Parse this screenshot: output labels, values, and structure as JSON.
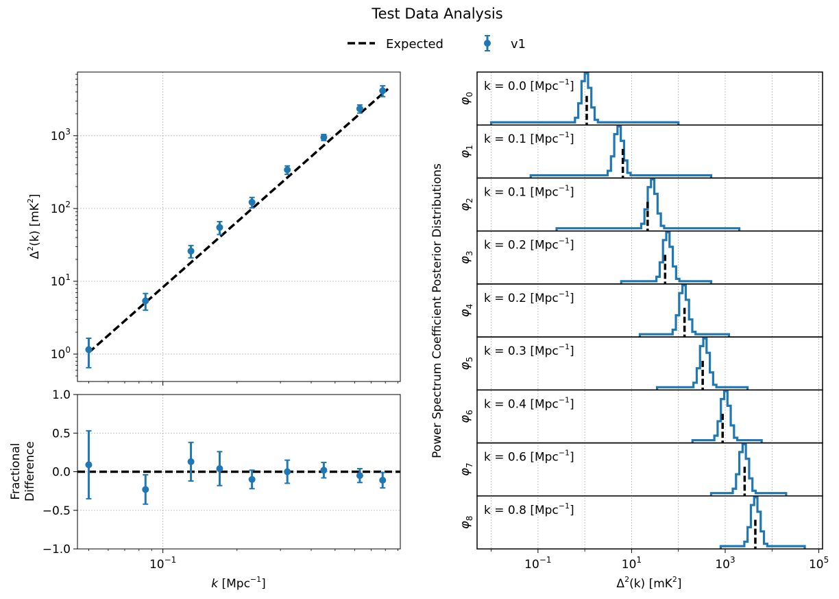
{
  "title": "Test Data Analysis",
  "legend": {
    "expected": "Expected",
    "series": "v1"
  },
  "colors": {
    "series": "#1f77b4",
    "expected": "#000000",
    "grid": "#b0b0b0"
  },
  "chart_data": [
    {
      "type": "scatter",
      "name": "power-spectrum",
      "xlabel_italic": "k",
      "xlabel_unit": "[Mpc",
      "xlabel_exp": "−1",
      "xlabel_close": "]",
      "ylabel_main": "Δ",
      "ylabel_exp": "2",
      "ylabel_rest": "(k) [mK",
      "ylabel_exp2": "2",
      "ylabel_close": "]",
      "xscale": "log",
      "yscale": "log",
      "xlim": [
        0.045,
        0.92
      ],
      "ylim": [
        0.42,
        7500
      ],
      "yticks": [
        {
          "value": 1,
          "mant": "10",
          "exp": "0"
        },
        {
          "value": 10,
          "mant": "10",
          "exp": "1"
        },
        {
          "value": 100,
          "mant": "10",
          "exp": "2"
        },
        {
          "value": 1000,
          "mant": "10",
          "exp": "3"
        }
      ],
      "grid": true,
      "expected": {
        "x": [
          0.05,
          0.82
        ],
        "y": [
          1.05,
          4400
        ]
      },
      "series": [
        {
          "name": "v1",
          "x": [
            0.05,
            0.085,
            0.13,
            0.17,
            0.23,
            0.32,
            0.45,
            0.63,
            0.78
          ],
          "y": [
            1.15,
            5.4,
            26,
            55,
            122,
            340,
            950,
            2350,
            4150
          ],
          "yerr_low": [
            0.5,
            1.4,
            5,
            11,
            20,
            45,
            90,
            300,
            700
          ],
          "yerr_high": [
            0.5,
            1.4,
            5,
            11,
            20,
            45,
            90,
            300,
            700
          ]
        }
      ]
    },
    {
      "type": "scatter",
      "name": "fractional-difference",
      "xlabel_italic": "k",
      "xlabel_unit": "[Mpc",
      "xlabel_exp": "−1",
      "xlabel_close": "]",
      "ylabel": [
        "Fractional",
        "Difference"
      ],
      "xscale": "log",
      "xlim": [
        0.045,
        0.92
      ],
      "ylim": [
        -1.0,
        1.0
      ],
      "yticks": [
        "−1.0",
        "−0.5",
        "0.0",
        "0.5",
        "1.0"
      ],
      "xticks": [
        {
          "value": 0.1,
          "mant": "10",
          "exp": "−1"
        }
      ],
      "grid": true,
      "series": [
        {
          "name": "v1",
          "x": [
            0.05,
            0.085,
            0.13,
            0.17,
            0.23,
            0.32,
            0.45,
            0.63,
            0.78
          ],
          "y": [
            0.09,
            -0.23,
            0.13,
            0.04,
            -0.1,
            0.0,
            0.02,
            -0.05,
            -0.11
          ],
          "yerr": [
            0.44,
            0.19,
            0.25,
            0.22,
            0.12,
            0.15,
            0.1,
            0.09,
            0.1
          ]
        }
      ]
    },
    {
      "type": "histogram",
      "name": "posterior-distributions",
      "ylabel": "Power Spectrum Coefficient Posterior Distributions",
      "xscale": "log",
      "xlim": [
        0.005,
        120000
      ],
      "xlabel_main": "Δ",
      "xlabel_exp": "2",
      "xlabel_rest": "(k) [mK",
      "xlabel_exp2": "2",
      "xlabel_close": "]",
      "xticks": [
        {
          "value": 0.1,
          "mant": "10",
          "exp": "−1"
        },
        {
          "value": 10,
          "mant": "10",
          "exp": "1"
        },
        {
          "value": 1000,
          "mant": "10",
          "exp": "3"
        },
        {
          "value": 100000,
          "mant": "10",
          "exp": "5"
        }
      ],
      "panels": [
        {
          "label": "φ",
          "sub": "0",
          "k_text": "k = 0.0 [Mpc",
          "expected": 1.1,
          "center": 1.0,
          "range": [
            0.01,
            100
          ]
        },
        {
          "label": "φ",
          "sub": "1",
          "k_text": "k = 0.1 [Mpc",
          "expected": 6.5,
          "center": 5.0,
          "range": [
            0.07,
            500
          ]
        },
        {
          "label": "φ",
          "sub": "2",
          "k_text": "k = 0.1 [Mpc",
          "expected": 22,
          "center": 26,
          "range": [
            0.25,
            2000
          ]
        },
        {
          "label": "φ",
          "sub": "3",
          "k_text": "k = 0.2 [Mpc",
          "expected": 52,
          "center": 55,
          "range": [
            6,
            500
          ]
        },
        {
          "label": "φ",
          "sub": "4",
          "k_text": "k = 0.2 [Mpc",
          "expected": 135,
          "center": 122,
          "range": [
            15,
            1200
          ]
        },
        {
          "label": "φ",
          "sub": "5",
          "k_text": "k = 0.3 [Mpc",
          "expected": 330,
          "center": 340,
          "range": [
            35,
            3000
          ]
        },
        {
          "label": "φ",
          "sub": "6",
          "k_text": "k = 0.4 [Mpc",
          "expected": 880,
          "center": 950,
          "range": [
            200,
            6000
          ]
        },
        {
          "label": "φ",
          "sub": "7",
          "k_text": "k = 0.6 [Mpc",
          "expected": 2600,
          "center": 2350,
          "range": [
            500,
            20000
          ]
        },
        {
          "label": "φ",
          "sub": "8",
          "k_text": "k = 0.8 [Mpc",
          "expected": 4400,
          "center": 4150,
          "range": [
            800,
            50000
          ]
        }
      ],
      "k_exp": "−1",
      "k_close": "]"
    }
  ]
}
